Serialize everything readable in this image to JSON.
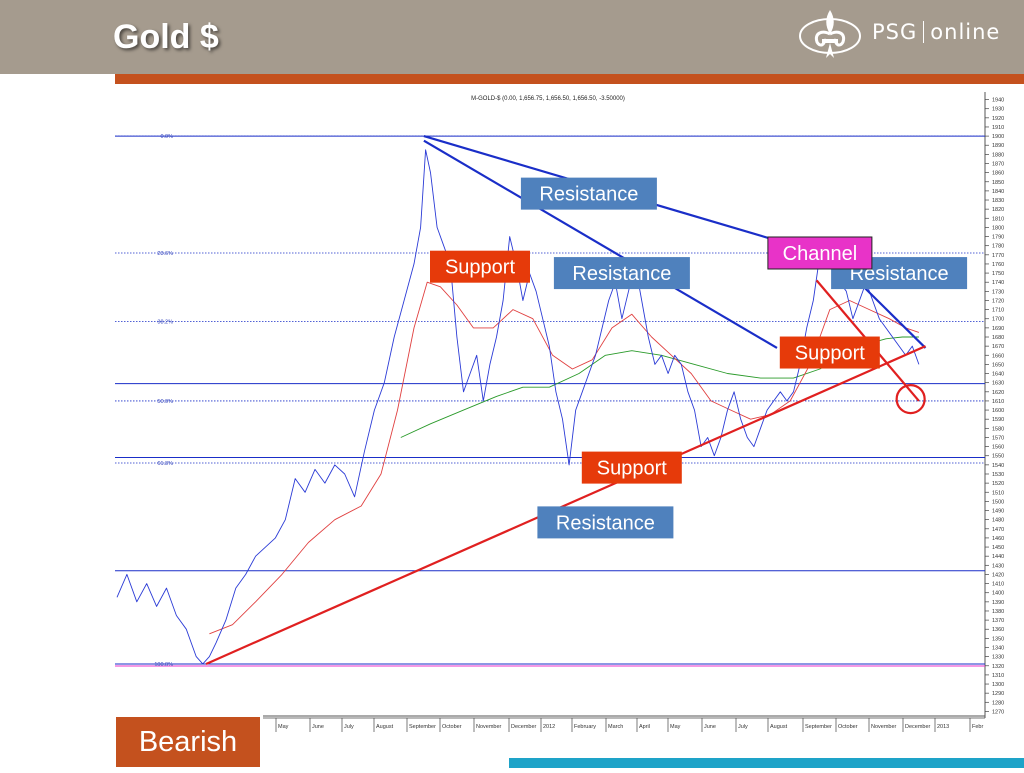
{
  "slide": {
    "title": "Gold $",
    "logo_text_left": "PSG",
    "logo_text_right": "online",
    "bearish_label": "Bearish"
  },
  "colors": {
    "header": "#a59b8e",
    "accent_orange": "#c4511e",
    "teal": "#1ea3c8",
    "price_line": "#2b3bd6",
    "ma_short": "#e04040",
    "ma_long": "#2a9a2a",
    "trend_resistance": "#1a2ec8",
    "trend_support": "#e02020",
    "label_blue": "#4f81bd",
    "label_red": "#e63a0a",
    "label_magenta": "#e833c8"
  },
  "chart_data": {
    "type": "line",
    "title": "M-GOLD-$ (0.00, 1,656.75, 1,656.50, 1,656.50, -3.50000)",
    "ylim": [
      1265,
      1945
    ],
    "y_ticks": [
      1270,
      1280,
      1290,
      1300,
      1310,
      1320,
      1330,
      1340,
      1350,
      1360,
      1370,
      1380,
      1390,
      1400,
      1410,
      1420,
      1430,
      1440,
      1450,
      1460,
      1470,
      1480,
      1490,
      1500,
      1510,
      1520,
      1530,
      1540,
      1550,
      1560,
      1570,
      1580,
      1590,
      1600,
      1610,
      1620,
      1630,
      1640,
      1650,
      1660,
      1670,
      1680,
      1690,
      1700,
      1710,
      1720,
      1730,
      1740,
      1750,
      1760,
      1770,
      1780,
      1790,
      1800,
      1810,
      1820,
      1830,
      1840,
      1850,
      1860,
      1870,
      1880,
      1890,
      1900,
      1910,
      1920,
      1930,
      1940
    ],
    "x_months": [
      "May",
      "June",
      "July",
      "August",
      "September",
      "October",
      "November",
      "December",
      "2012",
      "February",
      "March",
      "April",
      "May",
      "June",
      "July",
      "August",
      "September",
      "October",
      "November",
      "December",
      "2013",
      "Febr"
    ],
    "price_series": [
      [
        0,
        1395
      ],
      [
        0.3,
        1420
      ],
      [
        0.6,
        1390
      ],
      [
        0.9,
        1410
      ],
      [
        1.2,
        1385
      ],
      [
        1.5,
        1405
      ],
      [
        1.8,
        1375
      ],
      [
        2.1,
        1360
      ],
      [
        2.4,
        1330
      ],
      [
        2.6,
        1322
      ],
      [
        2.8,
        1330
      ],
      [
        3.0,
        1345
      ],
      [
        3.3,
        1370
      ],
      [
        3.6,
        1405
      ],
      [
        3.9,
        1420
      ],
      [
        4.2,
        1440
      ],
      [
        4.5,
        1450
      ],
      [
        4.8,
        1460
      ],
      [
        5.1,
        1480
      ],
      [
        5.4,
        1525
      ],
      [
        5.7,
        1510
      ],
      [
        6.0,
        1535
      ],
      [
        6.3,
        1520
      ],
      [
        6.6,
        1540
      ],
      [
        6.9,
        1530
      ],
      [
        7.2,
        1505
      ],
      [
        7.5,
        1555
      ],
      [
        7.8,
        1600
      ],
      [
        8.1,
        1630
      ],
      [
        8.4,
        1680
      ],
      [
        8.7,
        1720
      ],
      [
        9.0,
        1760
      ],
      [
        9.2,
        1800
      ],
      [
        9.35,
        1885
      ],
      [
        9.5,
        1860
      ],
      [
        9.7,
        1800
      ],
      [
        9.9,
        1780
      ],
      [
        10.1,
        1760
      ],
      [
        10.3,
        1680
      ],
      [
        10.5,
        1620
      ],
      [
        10.7,
        1640
      ],
      [
        10.9,
        1660
      ],
      [
        11.1,
        1610
      ],
      [
        11.3,
        1650
      ],
      [
        11.5,
        1680
      ],
      [
        11.7,
        1720
      ],
      [
        11.9,
        1790
      ],
      [
        12.1,
        1760
      ],
      [
        12.3,
        1720
      ],
      [
        12.5,
        1750
      ],
      [
        12.7,
        1730
      ],
      [
        12.9,
        1700
      ],
      [
        13.1,
        1670
      ],
      [
        13.3,
        1620
      ],
      [
        13.5,
        1590
      ],
      [
        13.7,
        1540
      ],
      [
        13.9,
        1600
      ],
      [
        14.1,
        1620
      ],
      [
        14.3,
        1640
      ],
      [
        14.5,
        1660
      ],
      [
        14.7,
        1690
      ],
      [
        14.9,
        1720
      ],
      [
        15.1,
        1740
      ],
      [
        15.3,
        1700
      ],
      [
        15.5,
        1730
      ],
      [
        15.7,
        1760
      ],
      [
        15.9,
        1720
      ],
      [
        16.1,
        1680
      ],
      [
        16.3,
        1650
      ],
      [
        16.5,
        1660
      ],
      [
        16.7,
        1640
      ],
      [
        16.9,
        1660
      ],
      [
        17.1,
        1650
      ],
      [
        17.3,
        1620
      ],
      [
        17.5,
        1600
      ],
      [
        17.7,
        1560
      ],
      [
        17.9,
        1570
      ],
      [
        18.1,
        1550
      ],
      [
        18.3,
        1570
      ],
      [
        18.5,
        1600
      ],
      [
        18.7,
        1620
      ],
      [
        18.9,
        1590
      ],
      [
        19.1,
        1570
      ],
      [
        19.3,
        1560
      ],
      [
        19.5,
        1580
      ],
      [
        19.7,
        1600
      ],
      [
        19.9,
        1610
      ],
      [
        20.1,
        1620
      ],
      [
        20.3,
        1610
      ],
      [
        20.5,
        1620
      ],
      [
        20.7,
        1650
      ],
      [
        20.9,
        1690
      ],
      [
        21.1,
        1720
      ],
      [
        21.3,
        1770
      ],
      [
        21.5,
        1780
      ],
      [
        21.7,
        1760
      ],
      [
        21.9,
        1740
      ],
      [
        22.1,
        1730
      ],
      [
        22.3,
        1700
      ],
      [
        22.5,
        1720
      ],
      [
        22.7,
        1740
      ],
      [
        22.9,
        1720
      ],
      [
        23.1,
        1700
      ],
      [
        23.3,
        1690
      ],
      [
        23.5,
        1680
      ],
      [
        23.7,
        1670
      ],
      [
        23.9,
        1660
      ],
      [
        24.1,
        1670
      ],
      [
        24.3,
        1650
      ]
    ],
    "ma_short_series": [
      [
        2.8,
        1355
      ],
      [
        3.5,
        1365
      ],
      [
        4.2,
        1390
      ],
      [
        5.0,
        1420
      ],
      [
        5.8,
        1455
      ],
      [
        6.6,
        1480
      ],
      [
        7.4,
        1495
      ],
      [
        8.0,
        1530
      ],
      [
        8.5,
        1600
      ],
      [
        9.0,
        1690
      ],
      [
        9.4,
        1740
      ],
      [
        9.8,
        1735
      ],
      [
        10.3,
        1715
      ],
      [
        10.8,
        1690
      ],
      [
        11.4,
        1690
      ],
      [
        12.0,
        1710
      ],
      [
        12.6,
        1700
      ],
      [
        13.2,
        1660
      ],
      [
        13.8,
        1645
      ],
      [
        14.4,
        1655
      ],
      [
        15.0,
        1690
      ],
      [
        15.6,
        1705
      ],
      [
        16.2,
        1680
      ],
      [
        16.8,
        1660
      ],
      [
        17.4,
        1640
      ],
      [
        18.0,
        1610
      ],
      [
        18.6,
        1600
      ],
      [
        19.2,
        1590
      ],
      [
        19.8,
        1595
      ],
      [
        20.4,
        1610
      ],
      [
        21.0,
        1650
      ],
      [
        21.6,
        1710
      ],
      [
        22.2,
        1720
      ],
      [
        22.8,
        1710
      ],
      [
        23.4,
        1700
      ],
      [
        23.9,
        1690
      ],
      [
        24.3,
        1685
      ]
    ],
    "ma_long_series": [
      [
        8.6,
        1570
      ],
      [
        9.5,
        1585
      ],
      [
        10.5,
        1600
      ],
      [
        11.5,
        1615
      ],
      [
        12.3,
        1625
      ],
      [
        13.1,
        1625
      ],
      [
        14.0,
        1640
      ],
      [
        14.8,
        1660
      ],
      [
        15.6,
        1665
      ],
      [
        16.5,
        1660
      ],
      [
        17.5,
        1650
      ],
      [
        18.5,
        1640
      ],
      [
        19.5,
        1635
      ],
      [
        20.5,
        1635
      ],
      [
        21.3,
        1645
      ],
      [
        22.0,
        1660
      ],
      [
        22.7,
        1672
      ],
      [
        23.3,
        1678
      ],
      [
        23.8,
        1680
      ],
      [
        24.3,
        1680
      ]
    ],
    "fib_levels": [
      {
        "label": "0.0%",
        "price": 1900
      },
      {
        "label": "23.6%",
        "price": 1772
      },
      {
        "label": "38.2%",
        "price": 1697
      },
      {
        "label": "50.0%",
        "price": 1610
      },
      {
        "label": "61.8%",
        "price": 1542
      },
      {
        "label": "100.0%",
        "price": 1322
      }
    ],
    "horizontal_lines": [
      1900,
      1548,
      1424,
      1322,
      1629
    ],
    "trendlines_resistance": [
      [
        [
          9.3,
          1900
        ],
        [
          23.8,
          1745
        ]
      ],
      [
        [
          9.3,
          1895
        ],
        [
          20.0,
          1668
        ]
      ],
      [
        [
          21.7,
          1768
        ],
        [
          24.5,
          1668
        ]
      ]
    ],
    "trendlines_support": [
      [
        [
          2.7,
          1322
        ],
        [
          24.5,
          1670
        ]
      ],
      [
        [
          21.2,
          1742
        ],
        [
          24.3,
          1610
        ]
      ]
    ],
    "annotations": [
      {
        "text": "Resistance",
        "style": "blue",
        "x_month": 14.3,
        "price": 1837
      },
      {
        "text": "Resistance",
        "style": "blue",
        "x_month": 15.3,
        "price": 1750
      },
      {
        "text": "Resistance",
        "style": "blue",
        "x_month": 23.7,
        "price": 1750
      },
      {
        "text": "Resistance",
        "style": "blue",
        "x_month": 14.8,
        "price": 1477
      },
      {
        "text": "Support",
        "style": "red",
        "x_month": 11.0,
        "price": 1757
      },
      {
        "text": "Support",
        "style": "red",
        "x_month": 21.6,
        "price": 1663
      },
      {
        "text": "Support",
        "style": "red",
        "x_month": 15.6,
        "price": 1537
      },
      {
        "text": "Channel",
        "style": "magenta",
        "x_month": 21.3,
        "price": 1772
      }
    ],
    "circle_marker": {
      "x_month": 24.05,
      "price": 1612
    },
    "grid": false
  }
}
